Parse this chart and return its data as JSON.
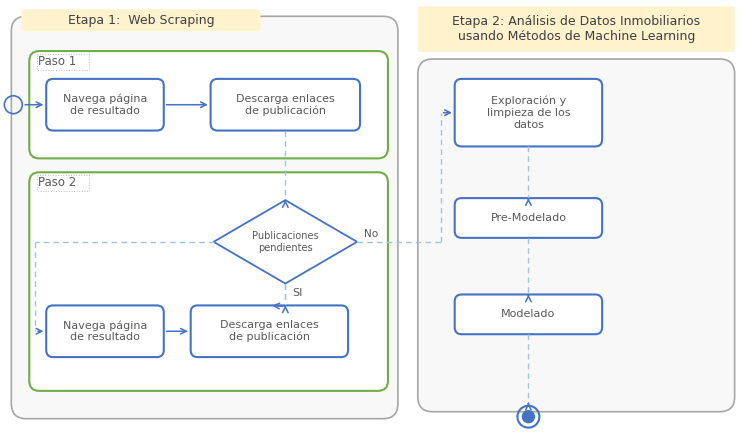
{
  "bg_color": "#ffffff",
  "etapa1_title": "Etapa 1:  Web Scraping",
  "etapa2_title": "Etapa 2: Análisis de Datos Inmobiliarios\nusando Métodos de Machine Learning",
  "paso1_label": "Paso 1",
  "paso2_label": "Paso 2",
  "box1_text": "Navega página\nde resultado",
  "box2_text": "Descarga enlaces\nde publicación",
  "diamond_text": "Publicaciones\npendientes",
  "no_label": "No",
  "si_label": "SI",
  "box3_text": "Navega página\nde resultado",
  "box4_text": "Descarga enlaces\nde publicación",
  "box5_text": "Exploración y\nlimpieza de los\ndatos",
  "box6_text": "Pre-Modelado",
  "box7_text": "Modelado",
  "blue": "#4472c4",
  "green": "#70ad47",
  "title_bg": "#fff2cc",
  "arrow_color": "#4472c4",
  "text_color": "#595959",
  "light_blue": "#9dc3e6",
  "dashed_border_color": "#bfbfbf"
}
